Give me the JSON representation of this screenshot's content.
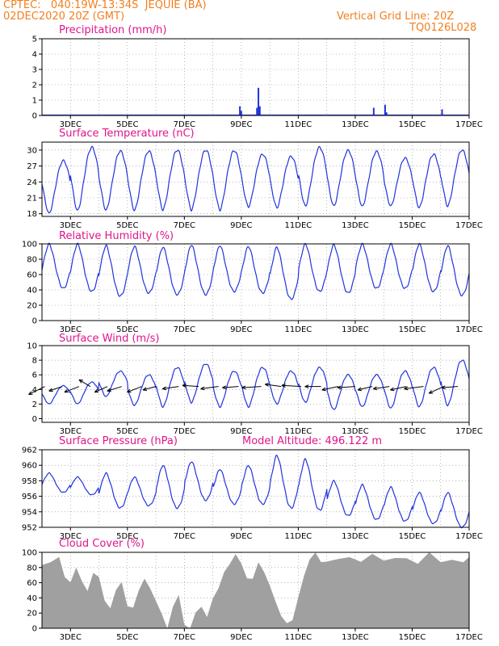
{
  "header": {
    "line1": "CPTEC:   040:19W-13:34S  JEQUIE (BA)",
    "line2": "02DEC2020 20Z (GMT)",
    "right1": "Vertical Grid Line: 20Z",
    "right2": "TQ0126L028"
  },
  "model_altitude": "Model Altitude: 496.122 m",
  "x_ticks": [
    "3DEC",
    "5DEC",
    "7DEC",
    "9DEC",
    "11DEC",
    "13DEC",
    "15DEC",
    "17DEC"
  ],
  "colors": {
    "line": "#2233dd",
    "title": "#e0158a",
    "header": "#f08020",
    "cloud": "#a0a0a0",
    "grid": "#888888"
  },
  "chart_data": [
    {
      "type": "bar",
      "title": "Precipitation (mm/h)",
      "ylim": [
        0,
        5
      ],
      "yticks": [
        "0",
        "1",
        "2",
        "3",
        "4",
        "5"
      ],
      "series": [
        {
          "values": [
            [
              8.95,
              0.6
            ],
            [
              9.0,
              0.3
            ],
            [
              9.55,
              0.5
            ],
            [
              9.6,
              1.8
            ],
            [
              9.65,
              0.6
            ],
            [
              13.65,
              0.5
            ],
            [
              14.05,
              0.7
            ],
            [
              14.1,
              0.2
            ],
            [
              16.05,
              0.4
            ]
          ]
        }
      ]
    },
    {
      "type": "line",
      "title": "Surface Temperature (nC)",
      "ylim": [
        17.5,
        31.5
      ],
      "yticks": [
        "18",
        "21",
        "24",
        "27",
        "30"
      ],
      "series": [
        {
          "min": [
            18,
            18.5,
            18.6,
            18.6,
            18.7,
            18.7,
            18.7,
            19.3,
            19.1,
            19.4,
            19.4,
            19.3,
            19.4,
            19.1,
            19.4,
            18.9
          ],
          "max": [
            28,
            30.5,
            29.8,
            29.8,
            30,
            30,
            29.9,
            29.2,
            28.8,
            30.5,
            29.9,
            29.7,
            28.5,
            29.2,
            30,
            30.8
          ]
        }
      ]
    },
    {
      "type": "line",
      "title": "Relative Humidity (%)",
      "ylim": [
        0,
        100
      ],
      "yticks": [
        "0",
        "20",
        "40",
        "60",
        "80",
        "100"
      ],
      "series": [
        {
          "min": [
            42,
            38,
            32,
            36,
            34,
            34,
            38,
            36,
            28,
            38,
            36,
            42,
            42,
            38,
            33,
            36
          ],
          "max": [
            100,
            100,
            98,
            97,
            96,
            99,
            98,
            97,
            96,
            100,
            99,
            100,
            100,
            100,
            98,
            100
          ]
        }
      ]
    },
    {
      "type": "line",
      "title": "Surface Wind (m/s)",
      "ylim": [
        -0.5,
        10
      ],
      "yticks": [
        "0",
        "2",
        "4",
        "6",
        "8",
        "10"
      ],
      "series": [
        {
          "min": [
            2.0,
            2.0,
            3.0,
            1.8,
            1.6,
            2.2,
            1.6,
            1.6,
            2.0,
            2.2,
            1.2,
            1.6,
            1.4,
            1.6,
            1.8,
            1.6
          ],
          "max": [
            4.5,
            5.0,
            6.5,
            6.0,
            7.0,
            7.5,
            6.5,
            7.0,
            6.5,
            7.0,
            6.0,
            6.0,
            6.5,
            7.0,
            8.0,
            6.5
          ]
        }
      ],
      "vectors": [
        [
          2.1,
          -1.0,
          -0.7
        ],
        [
          2.7,
          -0.8,
          -0.4
        ],
        [
          3.3,
          -0.9,
          -0.5
        ],
        [
          3.7,
          -0.7,
          0.6
        ],
        [
          4.3,
          -0.8,
          -0.5
        ],
        [
          4.8,
          -0.9,
          -0.4
        ],
        [
          5.5,
          -0.9,
          -0.5
        ],
        [
          6.0,
          -0.8,
          -0.3
        ],
        [
          6.8,
          -1.0,
          -0.2
        ],
        [
          7.5,
          -1.0,
          0.1
        ],
        [
          8.2,
          -1.1,
          -0.2
        ],
        [
          8.9,
          -1.0,
          -0.1
        ],
        [
          9.7,
          -1.2,
          -0.1
        ],
        [
          10.4,
          -1.0,
          0.2
        ],
        [
          11.1,
          -1.2,
          0.1
        ],
        [
          11.8,
          -1.0,
          0.0
        ],
        [
          12.4,
          -1.0,
          -0.3
        ],
        [
          13.0,
          -1.1,
          -0.1
        ],
        [
          13.6,
          -0.9,
          -0.3
        ],
        [
          14.2,
          -1.0,
          -0.2
        ],
        [
          14.8,
          -1.0,
          -0.3
        ],
        [
          15.4,
          -1.2,
          -0.2
        ],
        [
          16.1,
          -0.9,
          -0.6
        ],
        [
          16.6,
          -1.0,
          -0.1
        ]
      ]
    },
    {
      "type": "line",
      "title": "Surface Pressure (hPa)",
      "ylim": [
        952,
        962
      ],
      "yticks": [
        "952",
        "954",
        "956",
        "958",
        "960",
        "962"
      ],
      "series": [
        {
          "min": [
            956.5,
            956.2,
            954.5,
            954.8,
            954.5,
            955.5,
            955.0,
            955.0,
            954.5,
            954.2,
            953.5,
            953.0,
            952.8,
            952.5,
            952.0,
            952.5
          ],
          "max": [
            959,
            958.5,
            959,
            958.5,
            960,
            960.5,
            959.5,
            960,
            961.3,
            960.8,
            958,
            957.5,
            957.2,
            956.5,
            956.5,
            956.5
          ]
        }
      ]
    },
    {
      "type": "area",
      "title": "Cloud Cover (%)",
      "ylim": [
        0,
        100
      ],
      "yticks": [
        "0",
        "20",
        "40",
        "60",
        "80",
        "100"
      ],
      "series": [
        {
          "x": [
            2.0,
            2.3,
            2.6,
            2.8,
            3.0,
            3.2,
            3.4,
            3.6,
            3.8,
            4.0,
            4.2,
            4.4,
            4.6,
            4.8,
            5.0,
            5.2,
            5.4,
            5.6,
            5.8,
            6.0,
            6.2,
            6.4,
            6.6,
            6.8,
            7.0,
            7.2,
            7.4,
            7.6,
            7.8,
            8.0,
            8.2,
            8.4,
            8.6,
            8.8,
            9.0,
            9.2,
            9.4,
            9.6,
            9.8,
            10.0,
            10.2,
            10.4,
            10.6,
            10.8,
            11.0,
            11.2,
            11.4,
            11.6,
            11.8,
            12.0,
            12.4,
            12.8,
            13.2,
            13.6,
            14.0,
            14.4,
            14.8,
            15.2,
            15.6,
            16.0,
            16.4,
            16.8,
            17.0
          ],
          "values": [
            80,
            92,
            88,
            70,
            65,
            75,
            60,
            55,
            72,
            62,
            40,
            30,
            45,
            60,
            35,
            25,
            45,
            70,
            55,
            30,
            20,
            0,
            25,
            40,
            10,
            0,
            15,
            30,
            20,
            35,
            50,
            80,
            85,
            92,
            88,
            70,
            60,
            85,
            80,
            55,
            30,
            20,
            10,
            5,
            40,
            75,
            88,
            95,
            92,
            90,
            92,
            90,
            93,
            92,
            94,
            90,
            92,
            88,
            95,
            93,
            85,
            90,
            88
          ]
        }
      ]
    }
  ]
}
